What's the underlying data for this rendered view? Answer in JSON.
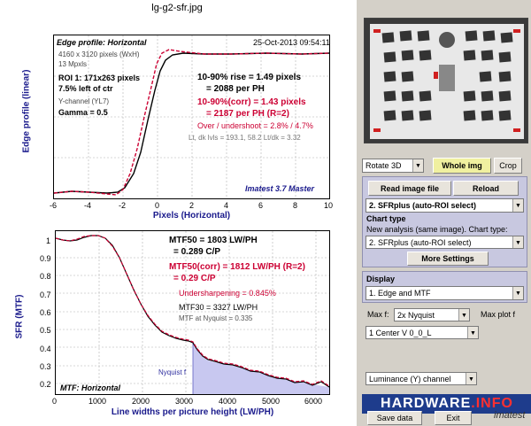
{
  "window_title": "lg-g2-sfr.jpg",
  "edge_panel": {
    "title": "Edge profile: Horizontal",
    "date": "25-Oct-2013 09:54:11",
    "info": [
      "4160 x 3120 pixels (WxH)",
      "13 Mpxls"
    ],
    "roi": "ROI 1:  171x263 pixels",
    "roi_pos": "7.5% left of ctr",
    "channel": "Y-channel  (YL7)",
    "gamma": "Gamma = 0.5",
    "rise": "10-90% rise = 1.49 pixels",
    "per_ph": "= 2088 per PH",
    "rise_corr": "10-90%(corr) = 1.43 pixels",
    "per_ph_corr": "= 2187 per PH   (R=2)",
    "overshoot": "Over / undershoot = 2.8% / 4.7%",
    "levels": "Lt, dk lvls = 193.1, 58.2   Lt/dk = 3.32",
    "brand": "Imatest 3.7 Master",
    "ylabel": "Edge profile (linear)",
    "xlabel": "Pixels (Horizontal)",
    "xticks": [
      "-6",
      "-4",
      "-2",
      "0",
      "2",
      "4",
      "6",
      "8",
      "10"
    ]
  },
  "mtf_panel": {
    "title": "MTF: Horizontal",
    "mtf50": "MTF50 = 1803 LW/PH",
    "mtf50_cp": "= 0.289 C/P",
    "mtf50_corr": "MTF50(corr) = 1812 LW/PH  (R=2)",
    "mtf50_corr_cp": "= 0.29 C/P",
    "undersharp": "Undersharpening = 0.845%",
    "mtf30": "MTF30 = 3327 LW/PH",
    "mtf_nyq": "MTF at Nyquist = 0.335",
    "nyquist": "Nyquist f",
    "ylabel": "SFR (MTF)",
    "xlabel": "Line widths per picture height (LW/PH)",
    "xticks": [
      "0",
      "1000",
      "2000",
      "3000",
      "4000",
      "5000",
      "6000"
    ],
    "yticks": [
      "1",
      "0.9",
      "0.8",
      "0.7",
      "0.6",
      "0.5",
      "0.4",
      "0.3",
      "0.2"
    ]
  },
  "controls": {
    "rotate": "Rotate 3D",
    "whole_img": "Whole img",
    "crop": "Crop",
    "read_file": "Read image file",
    "reload": "Reload",
    "analysis_select": "2. SFRplus (auto-ROI select)",
    "chart_type_label": "Chart type",
    "new_analysis_label": "New analysis (same image). Chart type:",
    "chart_type_select": "2. SFRplus (auto-ROI select)",
    "more_settings": "More Settings",
    "display_label": "Display",
    "display_select": "1.  Edge and MTF",
    "max_f_label": "Max f:",
    "max_f_select": "2x Nyquist",
    "max_plot_label": "Max plot f",
    "region_select": "1  Center  V     0_0_L",
    "channel_select": "Luminance (Y) channel",
    "save_data": "Save data",
    "exit": "Exit",
    "logo_a": "HARDWARE",
    "logo_b": ".INFO",
    "imatest": "imatest"
  },
  "colors": {
    "measured": "#000000",
    "corrected": "#cc0033",
    "accent_text": "#cc0033",
    "axis_label": "#1a1a8c",
    "panel": "#d4d0c8",
    "group": "#c8c8e0",
    "nyquist_fill": "#c8c8f0"
  }
}
